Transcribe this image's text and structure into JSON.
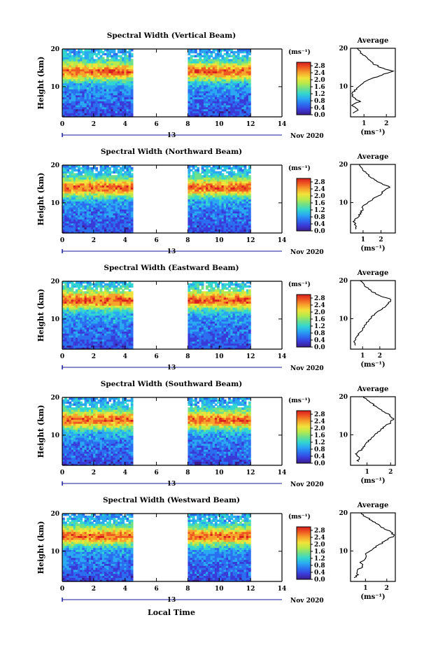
{
  "figure": {
    "xlabel": "Local Time",
    "date_label": "13",
    "month_year_label": "Nov 2020",
    "ylabel": "Height (km)",
    "unit_label": "(ms⁻¹)",
    "average_title": "Average",
    "average_xlabel": "(ms⁻¹)"
  },
  "colors": {
    "colormap": [
      "#3b1c8c",
      "#3a3ad8",
      "#2c6ef0",
      "#2aa8f2",
      "#33d6d0",
      "#6fe08a",
      "#b9ea4a",
      "#f2e23a",
      "#f7a42c",
      "#ef5a22",
      "#d81e1e"
    ],
    "axis": "#000000",
    "profile": "#000000"
  },
  "chart_data": [
    {
      "type": "heatmap",
      "title": "Spectral Width (Vertical Beam)",
      "xlim": [
        0,
        14
      ],
      "ylim": [
        2,
        20
      ],
      "x_ticks": [
        "0",
        "2",
        "4",
        "6",
        "8",
        "10",
        "12",
        "14"
      ],
      "y_ticks": [
        "10",
        "20"
      ],
      "colorbar_ticks": [
        "0.0",
        "0.4",
        "0.8",
        "1.2",
        "1.6",
        "2.0",
        "2.4",
        "2.8"
      ],
      "colorbar_range": [
        0,
        3.0
      ],
      "data_segments": [
        [
          0,
          4.5
        ],
        [
          8,
          12
        ]
      ],
      "peak_height_km": 14,
      "profile": {
        "height_km": [
          3,
          4,
          5,
          6,
          7,
          8,
          9,
          10,
          11,
          12,
          13,
          14,
          15,
          16,
          17,
          18,
          19,
          20
        ],
        "width": [
          0.5,
          0.75,
          0.45,
          0.8,
          0.55,
          0.45,
          0.6,
          0.75,
          0.95,
          1.3,
          1.8,
          2.25,
          1.75,
          1.4,
          1.2,
          1.0,
          0.85,
          0.7
        ]
      },
      "profile_ticks": [
        "1",
        "2"
      ],
      "profile_xlim": [
        0.4,
        2.4
      ]
    },
    {
      "type": "heatmap",
      "title": "Spectral Width (Northward Beam)",
      "xlim": [
        0,
        14
      ],
      "ylim": [
        2,
        20
      ],
      "x_ticks": [
        "0",
        "2",
        "4",
        "6",
        "8",
        "10",
        "12",
        "14"
      ],
      "y_ticks": [
        "10",
        "20"
      ],
      "colorbar_ticks": [
        "0.0",
        "0.4",
        "0.8",
        "1.2",
        "1.6",
        "2.0",
        "2.4",
        "2.8"
      ],
      "colorbar_range": [
        0,
        3.0
      ],
      "data_segments": [
        [
          0,
          4.5
        ],
        [
          8,
          12
        ]
      ],
      "peak_height_km": 14,
      "profile": {
        "height_km": [
          3,
          4,
          5,
          6,
          7,
          8,
          9,
          10,
          11,
          12,
          13,
          14,
          15,
          16,
          17,
          18,
          19,
          20
        ],
        "width": [
          0.55,
          0.6,
          0.5,
          0.65,
          0.85,
          0.95,
          1.0,
          1.25,
          1.6,
          1.95,
          2.15,
          2.5,
          2.0,
          1.65,
          1.35,
          1.1,
          0.9,
          0.8
        ]
      },
      "profile_ticks": [
        "1",
        "2"
      ],
      "profile_xlim": [
        0.3,
        2.8
      ]
    },
    {
      "type": "heatmap",
      "title": "Spectral Width (Eastward Beam)",
      "xlim": [
        0,
        14
      ],
      "ylim": [
        2,
        20
      ],
      "x_ticks": [
        "0",
        "2",
        "4",
        "6",
        "8",
        "10",
        "12",
        "14"
      ],
      "y_ticks": [
        "10",
        "20"
      ],
      "colorbar_ticks": [
        "0.0",
        "0.4",
        "0.8",
        "1.2",
        "1.6",
        "2.0",
        "2.4",
        "2.8"
      ],
      "colorbar_range": [
        0,
        3.0
      ],
      "data_segments": [
        [
          0,
          4.5
        ],
        [
          8,
          12
        ]
      ],
      "peak_height_km": 15,
      "profile": {
        "height_km": [
          3,
          4,
          5,
          6,
          7,
          8,
          9,
          10,
          11,
          12,
          13,
          14,
          15,
          16,
          17,
          18,
          19,
          20
        ],
        "width": [
          0.6,
          0.5,
          0.65,
          0.8,
          0.95,
          1.1,
          1.25,
          1.45,
          1.65,
          1.9,
          2.3,
          2.5,
          2.7,
          2.0,
          1.6,
          1.3,
          1.05,
          0.85
        ]
      },
      "profile_ticks": [
        "1",
        "2"
      ],
      "profile_xlim": [
        0.3,
        2.9
      ]
    },
    {
      "type": "heatmap",
      "title": "Spectral Width (Southward Beam)",
      "xlim": [
        0,
        14
      ],
      "ylim": [
        2,
        20
      ],
      "x_ticks": [
        "0",
        "2",
        "4",
        "6",
        "8",
        "10",
        "12",
        "14"
      ],
      "y_ticks": [
        "10",
        "20"
      ],
      "colorbar_ticks": [
        "0.0",
        "0.4",
        "0.8",
        "1.2",
        "1.6",
        "2.0",
        "2.4",
        "2.8"
      ],
      "colorbar_range": [
        0,
        3.0
      ],
      "data_segments": [
        [
          0,
          4.5
        ],
        [
          8,
          12
        ]
      ],
      "peak_height_km": 14,
      "profile": {
        "height_km": [
          3,
          4,
          5,
          6,
          7,
          8,
          9,
          10,
          11,
          12,
          13,
          14,
          15,
          16,
          17,
          18,
          19,
          20
        ],
        "width": [
          0.6,
          0.7,
          0.55,
          0.75,
          0.85,
          1.0,
          1.15,
          1.3,
          1.5,
          1.7,
          1.95,
          2.1,
          2.0,
          1.75,
          1.5,
          1.25,
          1.0,
          0.85
        ]
      },
      "profile_ticks": [
        "1",
        "2"
      ],
      "profile_xlim": [
        0.3,
        2.2
      ]
    },
    {
      "type": "heatmap",
      "title": "Spectral Width (Westward Beam)",
      "xlim": [
        0,
        14
      ],
      "ylim": [
        2,
        20
      ],
      "x_ticks": [
        "0",
        "2",
        "4",
        "6",
        "8",
        "10",
        "12",
        "14"
      ],
      "y_ticks": [
        "10",
        "20"
      ],
      "colorbar_ticks": [
        "0.0",
        "0.4",
        "0.8",
        "1.2",
        "1.6",
        "2.0",
        "2.4",
        "2.8"
      ],
      "colorbar_range": [
        0,
        3.0
      ],
      "data_segments": [
        [
          0,
          4.5
        ],
        [
          8,
          12
        ]
      ],
      "peak_height_km": 14,
      "profile": {
        "height_km": [
          3,
          4,
          5,
          6,
          7,
          8,
          9,
          10,
          11,
          12,
          13,
          14,
          15,
          16,
          17,
          18,
          19,
          20
        ],
        "width": [
          0.5,
          0.65,
          0.6,
          0.9,
          0.75,
          1.05,
          1.0,
          1.2,
          1.45,
          1.75,
          2.0,
          2.35,
          2.2,
          1.85,
          1.55,
          1.3,
          1.0,
          0.8
        ]
      },
      "profile_ticks": [
        "1",
        "2"
      ],
      "profile_xlim": [
        0.3,
        2.4
      ]
    }
  ]
}
